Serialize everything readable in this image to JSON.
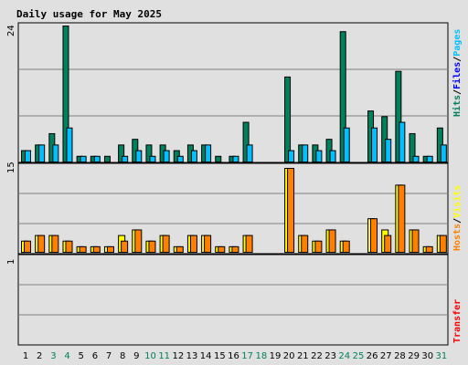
{
  "chart_data": {
    "type": "bar",
    "title": "Daily usage for May 2025",
    "days": [
      "1",
      "2",
      "3",
      "4",
      "5",
      "6",
      "7",
      "8",
      "9",
      "10",
      "11",
      "12",
      "13",
      "14",
      "15",
      "16",
      "17",
      "18",
      "19",
      "20",
      "21",
      "22",
      "23",
      "24",
      "25",
      "26",
      "27",
      "28",
      "29",
      "30",
      "31"
    ],
    "weekend_days": [
      3,
      4,
      10,
      11,
      17,
      18,
      24,
      25,
      31
    ],
    "panels": [
      {
        "name": "pages",
        "ymax_label": "24",
        "ymax": 24,
        "side_label": [
          "Hits",
          "/",
          "Files",
          "/",
          "Pages"
        ],
        "series": [
          {
            "name": "Hits",
            "values": [
              2,
              3,
              5,
              24,
              1,
              1,
              1,
              3,
              4,
              3,
              3,
              2,
              3,
              3,
              1,
              1,
              7,
              0,
              0,
              15,
              3,
              3,
              4,
              23,
              0,
              9,
              8,
              16,
              5,
              1,
              6
            ]
          },
          {
            "name": "Files",
            "values": [
              2,
              3,
              3,
              6,
              1,
              1,
              0,
              1,
              2,
              1,
              2,
              1,
              2,
              3,
              0,
              1,
              3,
              0,
              0,
              2,
              3,
              2,
              2,
              6,
              0,
              6,
              4,
              7,
              1,
              1,
              3
            ]
          }
        ]
      },
      {
        "name": "visits",
        "ymax_label": "15",
        "ymax": 15,
        "side_label": [
          "Hosts",
          "/",
          "Visits"
        ],
        "series": [
          {
            "name": "Visits",
            "values": [
              2,
              3,
              3,
              2,
              1,
              1,
              1,
              3,
              4,
              2,
              3,
              1,
              3,
              3,
              1,
              1,
              3,
              0,
              0,
              15,
              3,
              2,
              4,
              2,
              0,
              6,
              4,
              12,
              4,
              1,
              3
            ]
          },
          {
            "name": "Hosts",
            "values": [
              2,
              3,
              3,
              2,
              1,
              1,
              1,
              2,
              4,
              2,
              3,
              1,
              3,
              3,
              1,
              1,
              3,
              0,
              0,
              15,
              3,
              2,
              4,
              2,
              0,
              6,
              3,
              12,
              4,
              1,
              3
            ]
          }
        ]
      },
      {
        "name": "transfer",
        "ymax_label": "1",
        "ymax": 1,
        "side_label": [
          "Transfer"
        ],
        "series": [
          {
            "name": "Transfer",
            "values": [
              0,
              0,
              0,
              0,
              0,
              0,
              0,
              0,
              0,
              0,
              0,
              0,
              0,
              0,
              0,
              0,
              0,
              0,
              0,
              0,
              0,
              0,
              0,
              0,
              0,
              0,
              0,
              0,
              0,
              0,
              0
            ]
          }
        ]
      }
    ],
    "colors": {
      "background": "#e0e0e0",
      "hits": "#00805c",
      "files": "#00c0ff",
      "visits": "#ffff00",
      "hosts": "#ff8000",
      "transfer": "#ff0000",
      "title": "#0000ff",
      "weekday_label": "#000000",
      "weekend_label": "#00805c",
      "label_hits": "#00805c",
      "label_files": "#0000ff",
      "label_pages": "#00c0ff",
      "label_hosts": "#ff8000",
      "label_visits": "#ffff00",
      "label_transfer": "#ff0000",
      "grid": "#808080",
      "frame": "#000000"
    }
  }
}
